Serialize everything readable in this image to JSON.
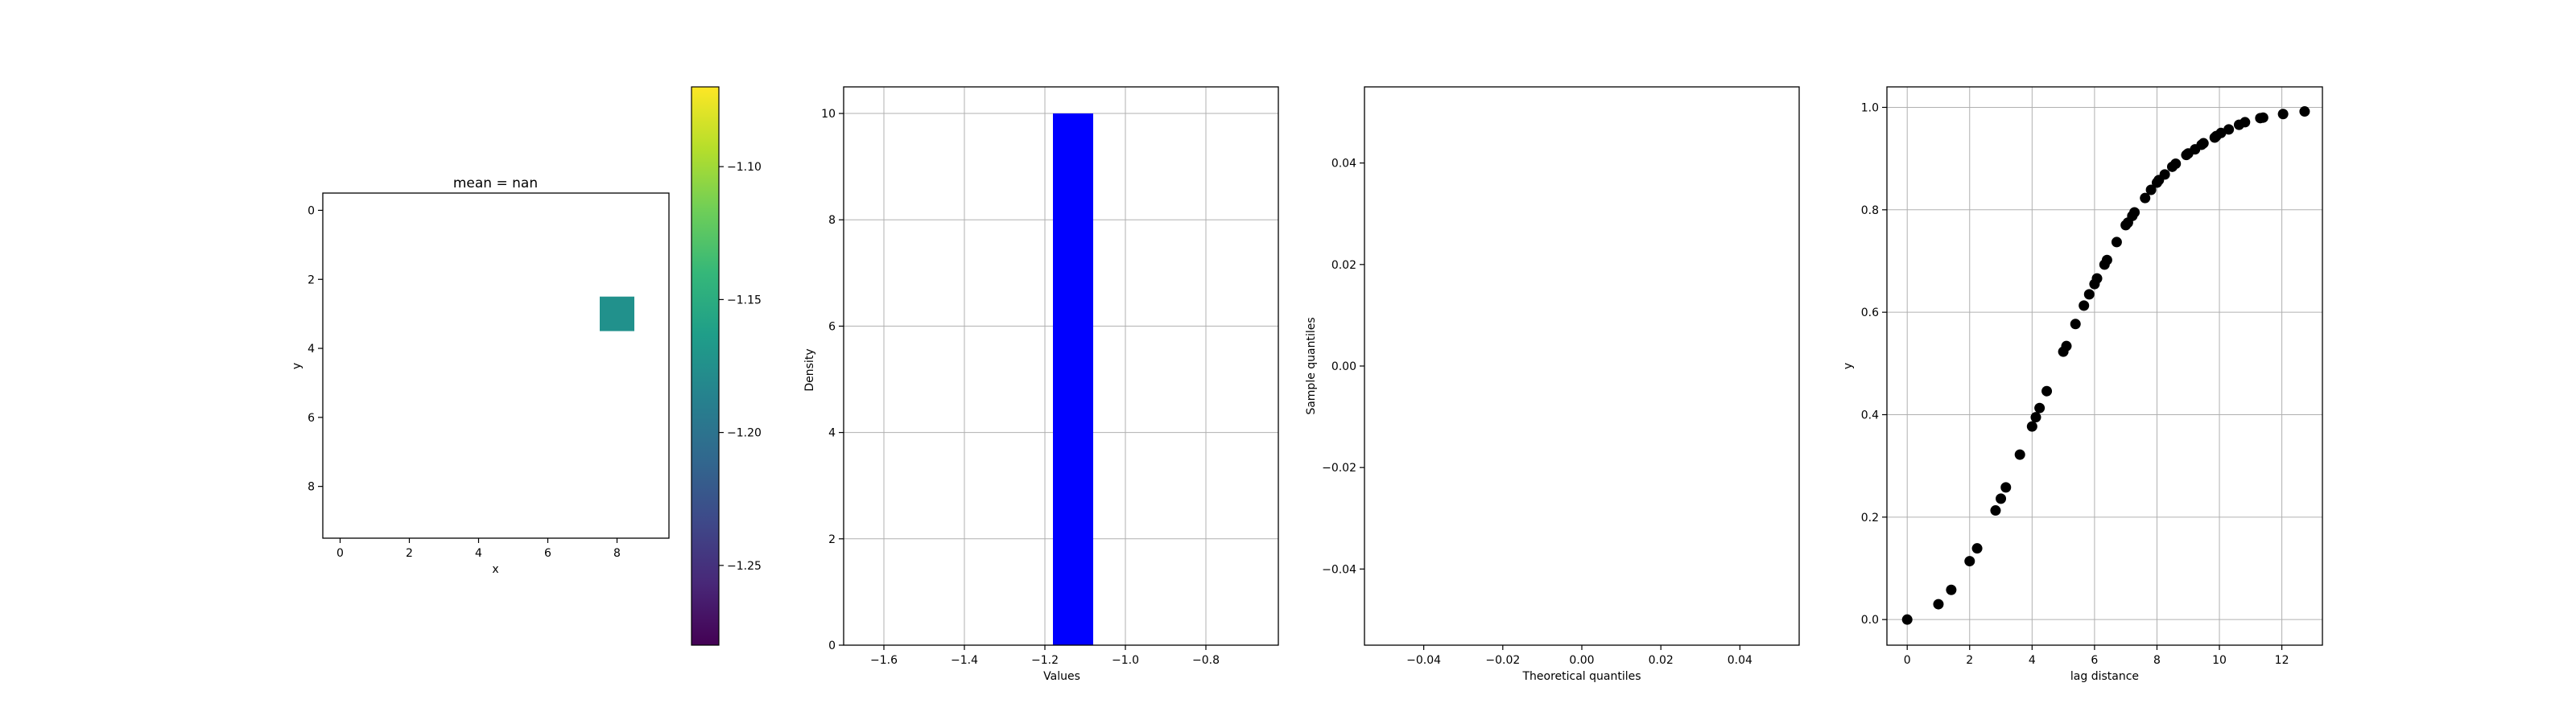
{
  "chart_data": [
    {
      "type": "heatmap",
      "title": "mean = nan",
      "xlabel": "x",
      "ylabel": "y",
      "xlim": [
        -0.5,
        9.5
      ],
      "ylim": [
        9.5,
        -0.5
      ],
      "xticks": [
        "0",
        "2",
        "4",
        "6",
        "8"
      ],
      "yticks": [
        "0",
        "2",
        "4",
        "6",
        "8"
      ],
      "cells": [
        {
          "x": 8,
          "y": 3,
          "value": -1.18
        }
      ],
      "cell_color": "#21918c",
      "colorbar": {
        "range": [
          -1.28,
          -1.07
        ],
        "ticks": [
          "−1.10",
          "−1.15",
          "−1.20",
          "−1.25"
        ],
        "tick_values": [
          -1.1,
          -1.15,
          -1.2,
          -1.25
        ],
        "colormap": "viridis"
      }
    },
    {
      "type": "bar",
      "xlabel": "Values",
      "ylabel": "Density",
      "xlim": [
        -1.7,
        -0.62
      ],
      "ylim": [
        0,
        10.5
      ],
      "xticks": [
        "−1.6",
        "−1.4",
        "−1.2",
        "−1.0",
        "−0.8"
      ],
      "xtick_values": [
        -1.6,
        -1.4,
        -1.2,
        -1.0,
        -0.8
      ],
      "yticks": [
        "0",
        "2",
        "4",
        "6",
        "8",
        "10"
      ],
      "ytick_values": [
        0,
        2,
        4,
        6,
        8,
        10
      ],
      "bars": [
        {
          "x0": -1.18,
          "x1": -1.08,
          "value": 10
        }
      ],
      "color": "#0000ff",
      "grid": true
    },
    {
      "type": "scatter",
      "xlabel": "Theoretical quantiles",
      "ylabel": "Sample quantiles",
      "xlim": [
        -0.055,
        0.055
      ],
      "ylim": [
        -0.055,
        0.055
      ],
      "xticks": [
        "−0.04",
        "−0.02",
        "0.00",
        "0.02",
        "0.04"
      ],
      "xtick_values": [
        -0.04,
        -0.02,
        0.0,
        0.02,
        0.04
      ],
      "yticks": [
        "−0.04",
        "−0.02",
        "0.00",
        "0.02",
        "0.04"
      ],
      "ytick_values": [
        -0.04,
        -0.02,
        0.0,
        0.02,
        0.04
      ],
      "points": [],
      "grid": false
    },
    {
      "type": "scatter",
      "xlabel": "lag distance",
      "ylabel": "y",
      "xlim": [
        -0.65,
        13.3
      ],
      "ylim": [
        -0.05,
        1.04
      ],
      "xticks": [
        "0",
        "2",
        "4",
        "6",
        "8",
        "10",
        "12"
      ],
      "xtick_values": [
        0,
        2,
        4,
        6,
        8,
        10,
        12
      ],
      "yticks": [
        "0.0",
        "0.2",
        "0.4",
        "0.6",
        "0.8",
        "1.0"
      ],
      "ytick_values": [
        0.0,
        0.2,
        0.4,
        0.6,
        0.8,
        1.0
      ],
      "color": "#000000",
      "grid": true,
      "x": [
        0,
        1,
        1.41,
        2,
        2.24,
        2.83,
        3,
        3.16,
        3.61,
        4,
        4.12,
        4.24,
        4.47,
        5,
        5.1,
        5.39,
        5.66,
        5.83,
        6,
        6.08,
        6.32,
        6.4,
        6.71,
        7,
        7.07,
        7.21,
        7.28,
        7.62,
        7.81,
        8,
        8.06,
        8.25,
        8.49,
        8.6,
        8.94,
        9,
        9.22,
        9.43,
        9.49,
        9.85,
        9.9,
        10.05,
        10.3,
        10.63,
        10.82,
        11.31,
        11.4,
        12.04,
        12.73
      ],
      "y": [
        0.0,
        0.03,
        0.058,
        0.114,
        0.139,
        0.213,
        0.236,
        0.258,
        0.322,
        0.377,
        0.395,
        0.413,
        0.446,
        0.523,
        0.534,
        0.577,
        0.613,
        0.635,
        0.655,
        0.666,
        0.693,
        0.702,
        0.737,
        0.77,
        0.775,
        0.788,
        0.795,
        0.823,
        0.839,
        0.853,
        0.858,
        0.869,
        0.884,
        0.89,
        0.907,
        0.91,
        0.918,
        0.927,
        0.93,
        0.941,
        0.944,
        0.95,
        0.957,
        0.966,
        0.971,
        0.979,
        0.98,
        0.987,
        0.992
      ]
    }
  ]
}
